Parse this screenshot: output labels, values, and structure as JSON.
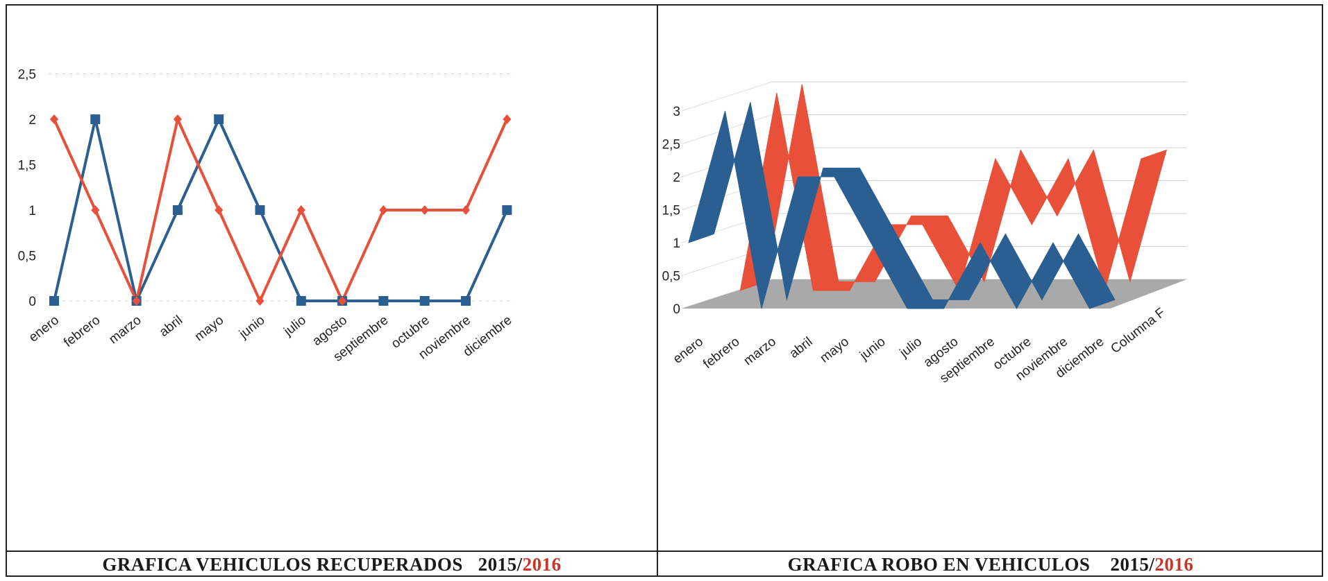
{
  "colors": {
    "series1": "#2b5f91",
    "series2": "#e8503a",
    "grid": "#cfcfcf",
    "floor": "#a9a9a9",
    "year2": "#c8362a"
  },
  "captions": {
    "left": {
      "text": "GRAFICA VEHICULOS RECUPERADOS",
      "year1": "2015/",
      "year2": "2016"
    },
    "right": {
      "text": "GRAFICA  ROBO EN VEHICULOS",
      "year1": "2015/",
      "year2": "2016"
    }
  },
  "chart_data": [
    {
      "type": "line",
      "categories": [
        "enero",
        "febrero",
        "marzo",
        "abril",
        "mayo",
        "junio",
        "julio",
        "agosto",
        "septiembre",
        "octubre",
        "noviembre",
        "diciembre"
      ],
      "y_ticks": [
        "0",
        "0,5",
        "1",
        "1,5",
        "2",
        "2,5"
      ],
      "ylim": [
        0,
        2.5
      ],
      "series": [
        {
          "values": [
            0,
            2,
            0,
            1,
            2,
            1,
            0,
            0,
            0,
            0,
            0,
            1
          ],
          "marker": "square",
          "color": "#2b5f91"
        },
        {
          "values": [
            2,
            1,
            0,
            2,
            1,
            0,
            1,
            0,
            1,
            1,
            1,
            2
          ],
          "marker": "diamond",
          "color": "#e8503a"
        }
      ]
    },
    {
      "type": "line",
      "style": "3d-ribbon",
      "categories": [
        "enero",
        "febrero",
        "marzo",
        "abril",
        "mayo",
        "junio",
        "julio",
        "agosto",
        "septiembre",
        "octubre",
        "noviembre",
        "diciembre"
      ],
      "depth_label": "Columna F",
      "y_ticks": [
        "0",
        "0,5",
        "1",
        "1,5",
        "2",
        "2,5",
        "3"
      ],
      "ylim": [
        0,
        3
      ],
      "series": [
        {
          "values": [
            1,
            3,
            0,
            2,
            2,
            1,
            0,
            0,
            1,
            0,
            1,
            0
          ],
          "color": "#2b5f91"
        },
        {
          "values": [
            0,
            3,
            0,
            0,
            1,
            1,
            0,
            2,
            1,
            2,
            0,
            2
          ],
          "color": "#e8503a"
        }
      ]
    }
  ]
}
